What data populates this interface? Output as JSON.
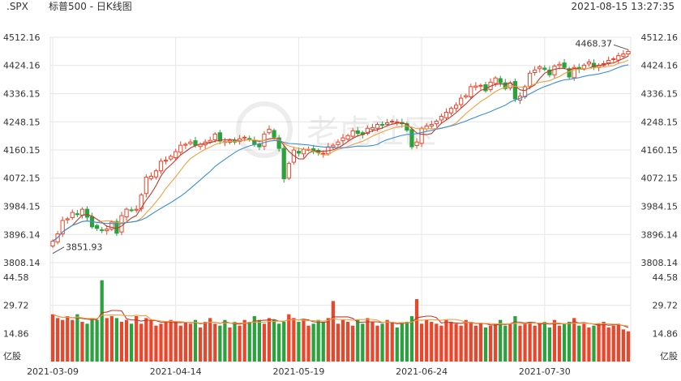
{
  "header": {
    "symbol": ".SPX",
    "title": "标普500 - 日K线图",
    "datetime": "2021-08-15 13:27:35"
  },
  "watermark": "老虎社区",
  "colors": {
    "up": "#e8472c",
    "down": "#2aa33c",
    "ma5": "#c0392b",
    "ma10": "#f0a040",
    "ma20": "#3a8fd8",
    "grid": "#e6e6e6"
  },
  "chart_data": {
    "type": "candlestick",
    "price_axis": {
      "ticks": [
        "4512.16",
        "4424.16",
        "4336.15",
        "4248.15",
        "4160.15",
        "4072.15",
        "3984.15",
        "3896.14",
        "3808.14"
      ],
      "min": 3808.14,
      "max": 4512.16
    },
    "volume_axis": {
      "ticks": [
        "44.58",
        "29.72",
        "14.86"
      ],
      "max": 44.58,
      "unit": "亿股"
    },
    "x_ticks": [
      {
        "label": "2021-03-09",
        "index": 0
      },
      {
        "label": "2021-04-14",
        "index": 25
      },
      {
        "label": "2021-05-19",
        "index": 50
      },
      {
        "label": "2021-06-24",
        "index": 75
      },
      {
        "label": "2021-07-30",
        "index": 100
      }
    ],
    "annotations": {
      "low": "3851.93",
      "high": "4468.37"
    },
    "close": [
      3875,
      3898,
      3940,
      3945,
      3965,
      3958,
      3975,
      3950,
      3920,
      3915,
      3910,
      3913,
      3935,
      3900,
      3955,
      3975,
      3972,
      3975,
      4020,
      4075,
      4078,
      4095,
      4125,
      4128,
      4140,
      4155,
      4175,
      4178,
      4185,
      4175,
      4178,
      4185,
      4190,
      4210,
      4188,
      4186,
      4190,
      4185,
      4195,
      4200,
      4192,
      4178,
      4170,
      4210,
      4225,
      4200,
      4165,
      4070,
      4118,
      4160,
      4150,
      4162,
      4162,
      4155,
      4152,
      4150,
      4170,
      4175,
      4185,
      4198,
      4205,
      4220,
      4212,
      4208,
      4228,
      4230,
      4240,
      4238,
      4245,
      4250,
      4248,
      4242,
      4222,
      4170,
      4185,
      4228,
      4235,
      4240,
      4250,
      4265,
      4278,
      4290,
      4300,
      4322,
      4330,
      4358,
      4360,
      4362,
      4345,
      4372,
      4385,
      4370,
      4352,
      4370,
      4320,
      4328,
      4358,
      4400,
      4410,
      4420,
      4412,
      4395,
      4422,
      4428,
      4418,
      4388,
      4418,
      4412,
      4425,
      4435,
      4420,
      4425,
      4430,
      4440,
      4445,
      4455,
      4460,
      4468
    ],
    "volume": [
      25,
      23,
      22,
      24,
      22,
      25,
      21,
      20,
      23,
      22,
      43,
      23,
      24,
      23,
      21,
      22,
      20,
      24,
      20,
      23,
      22,
      19,
      20,
      21,
      22,
      21,
      19,
      21,
      20,
      22,
      18,
      21,
      23,
      20,
      19,
      22,
      18,
      21,
      19,
      22,
      21,
      24,
      22,
      20,
      23,
      22,
      20,
      21,
      25,
      23,
      21,
      22,
      19,
      20,
      22,
      21,
      23,
      32,
      20,
      22,
      21,
      19,
      22,
      20,
      23,
      21,
      19,
      20,
      22,
      21,
      18,
      20,
      21,
      24,
      33,
      20,
      22,
      21,
      20,
      19,
      22,
      21,
      20,
      19,
      22,
      21,
      19,
      20,
      18,
      19,
      20,
      22,
      19,
      20,
      24,
      19,
      20,
      21,
      19,
      20,
      21,
      18,
      22,
      19,
      20,
      21,
      23,
      19,
      20,
      18,
      19,
      20,
      21,
      18,
      19,
      20,
      17,
      16
    ]
  }
}
